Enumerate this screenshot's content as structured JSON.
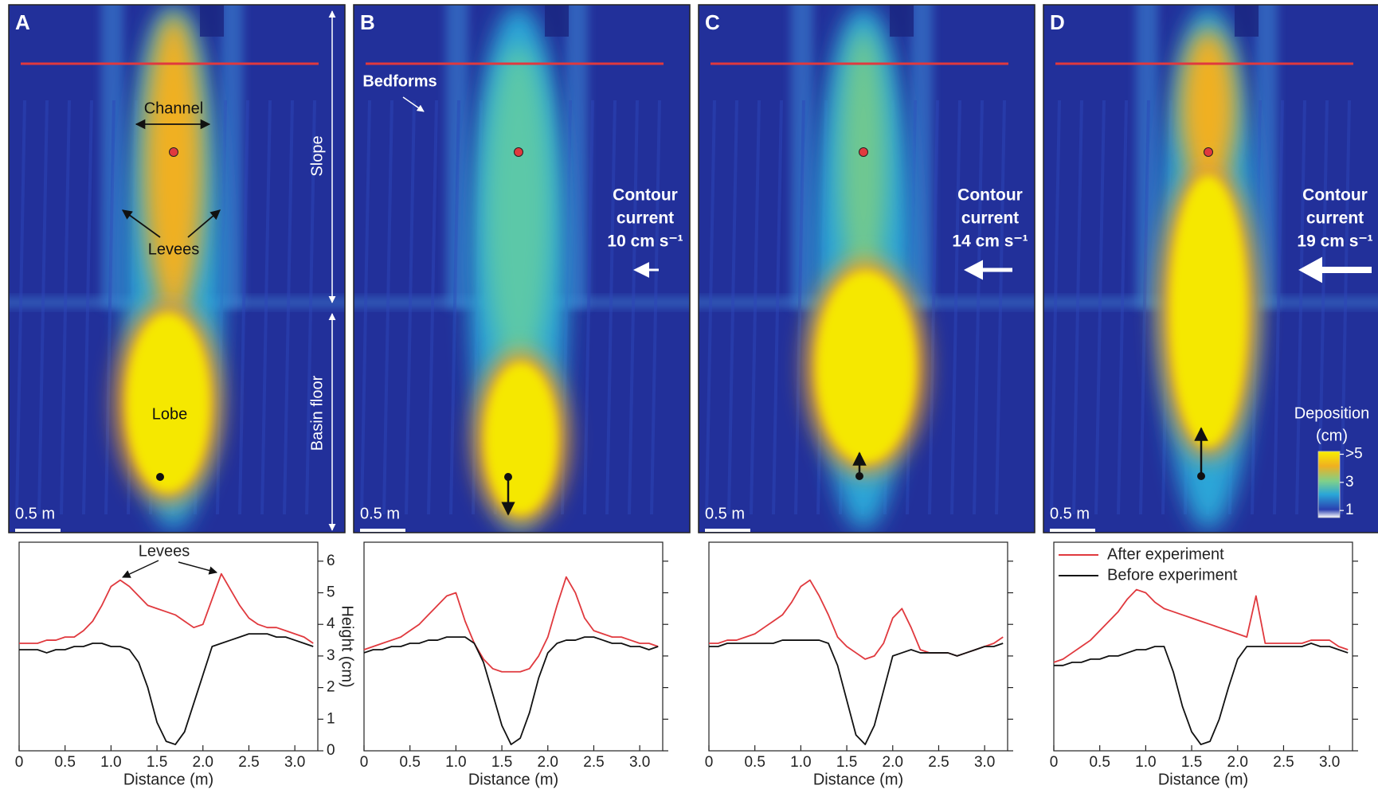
{
  "maps": [
    {
      "panel": "A",
      "channel": "Channel",
      "levees": "Levees",
      "lobe": "Lobe",
      "slope": "Slope",
      "basin_floor": "Basin floor",
      "scale": "0.5 m"
    },
    {
      "panel": "B",
      "bedforms": "Bedforms",
      "current": [
        "Contour",
        "current",
        "10 cm s⁻¹"
      ],
      "scale": "0.5 m"
    },
    {
      "panel": "C",
      "current": [
        "Contour",
        "current",
        "14 cm s⁻¹"
      ],
      "scale": "0.5 m"
    },
    {
      "panel": "D",
      "current": [
        "Contour",
        "current",
        "19 cm s⁻¹"
      ],
      "scale": "0.5 m",
      "colorbar": {
        "title": [
          "Deposition",
          "(cm)"
        ],
        "lim": [
          0.5,
          5.2
        ],
        "ticks": [
          {
            "value": 5,
            "label": ">5"
          },
          3,
          1
        ]
      }
    }
  ],
  "chart_data": [
    {
      "type": "line",
      "xlabel": "Distance (m)",
      "ylabel": "Height (cm)",
      "annotation": "Levees",
      "ytick_labels": true,
      "x": [
        0,
        0.1,
        0.2,
        0.3,
        0.4,
        0.5,
        0.6,
        0.7,
        0.8,
        0.9,
        1.0,
        1.1,
        1.2,
        1.3,
        1.4,
        1.5,
        1.6,
        1.7,
        1.8,
        1.9,
        2.0,
        2.1,
        2.2,
        2.3,
        2.4,
        2.5,
        2.6,
        2.7,
        2.8,
        2.9,
        3.0,
        3.1,
        3.2
      ],
      "series": [
        {
          "color": "#e0393e",
          "values": [
            3.4,
            3.4,
            3.4,
            3.5,
            3.5,
            3.6,
            3.6,
            3.8,
            4.1,
            4.6,
            5.2,
            5.4,
            5.2,
            4.9,
            4.6,
            4.5,
            4.4,
            4.3,
            4.1,
            3.9,
            4.0,
            4.8,
            5.6,
            5.1,
            4.6,
            4.2,
            4.0,
            3.9,
            3.9,
            3.8,
            3.7,
            3.6,
            3.4
          ]
        },
        {
          "color": "#111111",
          "values": [
            3.2,
            3.2,
            3.2,
            3.1,
            3.2,
            3.2,
            3.3,
            3.3,
            3.4,
            3.4,
            3.3,
            3.3,
            3.2,
            2.8,
            2.0,
            0.9,
            0.3,
            0.2,
            0.6,
            1.5,
            2.4,
            3.3,
            3.4,
            3.5,
            3.6,
            3.7,
            3.7,
            3.7,
            3.6,
            3.6,
            3.5,
            3.4,
            3.3
          ]
        }
      ],
      "xlim": [
        0,
        3.25
      ],
      "ylim": [
        0,
        6.6
      ],
      "xticks": [
        0,
        0.5,
        {
          "value": 1,
          "label": "1.0"
        },
        1.5,
        {
          "value": 2,
          "label": "2.0"
        },
        2.5,
        {
          "value": 3,
          "label": "3.0"
        }
      ],
      "yticks": [
        0,
        1,
        2,
        3,
        4,
        5,
        6
      ]
    },
    {
      "type": "line",
      "xlabel": "Distance (m)",
      "ytick_labels": false,
      "x": [
        0,
        0.1,
        0.2,
        0.3,
        0.4,
        0.5,
        0.6,
        0.7,
        0.8,
        0.9,
        1.0,
        1.1,
        1.2,
        1.3,
        1.4,
        1.5,
        1.6,
        1.7,
        1.8,
        1.9,
        2.0,
        2.1,
        2.2,
        2.3,
        2.4,
        2.5,
        2.6,
        2.7,
        2.8,
        2.9,
        3.0,
        3.1,
        3.2
      ],
      "series": [
        {
          "color": "#e0393e",
          "values": [
            3.2,
            3.3,
            3.4,
            3.5,
            3.6,
            3.8,
            4.0,
            4.3,
            4.6,
            4.9,
            5.0,
            4.1,
            3.4,
            2.9,
            2.6,
            2.5,
            2.5,
            2.5,
            2.6,
            3.0,
            3.6,
            4.6,
            5.5,
            5.0,
            4.2,
            3.8,
            3.7,
            3.6,
            3.6,
            3.5,
            3.4,
            3.4,
            3.3
          ]
        },
        {
          "color": "#111111",
          "values": [
            3.1,
            3.2,
            3.2,
            3.3,
            3.3,
            3.4,
            3.4,
            3.5,
            3.5,
            3.6,
            3.6,
            3.6,
            3.4,
            2.8,
            1.8,
            0.8,
            0.2,
            0.4,
            1.2,
            2.3,
            3.1,
            3.4,
            3.5,
            3.5,
            3.6,
            3.6,
            3.5,
            3.4,
            3.4,
            3.3,
            3.3,
            3.2,
            3.3
          ]
        }
      ],
      "xlim": [
        0,
        3.25
      ],
      "ylim": [
        0,
        6.6
      ],
      "xticks": [
        0,
        0.5,
        {
          "value": 1,
          "label": "1.0"
        },
        1.5,
        {
          "value": 2,
          "label": "2.0"
        },
        2.5,
        {
          "value": 3,
          "label": "3.0"
        }
      ],
      "yticks": [
        0,
        1,
        2,
        3,
        4,
        5,
        6
      ]
    },
    {
      "type": "line",
      "xlabel": "Distance (m)",
      "ytick_labels": false,
      "x": [
        0,
        0.1,
        0.2,
        0.3,
        0.4,
        0.5,
        0.6,
        0.7,
        0.8,
        0.9,
        1.0,
        1.1,
        1.2,
        1.3,
        1.4,
        1.5,
        1.6,
        1.7,
        1.8,
        1.9,
        2.0,
        2.1,
        2.2,
        2.3,
        2.4,
        2.5,
        2.6,
        2.7,
        2.8,
        2.9,
        3.0,
        3.1,
        3.2
      ],
      "series": [
        {
          "color": "#e0393e",
          "values": [
            3.4,
            3.4,
            3.5,
            3.5,
            3.6,
            3.7,
            3.9,
            4.1,
            4.3,
            4.7,
            5.2,
            5.4,
            4.9,
            4.3,
            3.6,
            3.3,
            3.1,
            2.9,
            3.0,
            3.4,
            4.2,
            4.5,
            3.9,
            3.2,
            3.1,
            3.1,
            3.1,
            3.0,
            3.1,
            3.2,
            3.3,
            3.4,
            3.6
          ]
        },
        {
          "color": "#111111",
          "values": [
            3.3,
            3.3,
            3.4,
            3.4,
            3.4,
            3.4,
            3.4,
            3.4,
            3.5,
            3.5,
            3.5,
            3.5,
            3.5,
            3.4,
            2.7,
            1.6,
            0.5,
            0.2,
            0.8,
            1.9,
            3.0,
            3.1,
            3.2,
            3.1,
            3.1,
            3.1,
            3.1,
            3.0,
            3.1,
            3.2,
            3.3,
            3.3,
            3.4
          ]
        }
      ],
      "xlim": [
        0,
        3.25
      ],
      "ylim": [
        0,
        6.6
      ],
      "xticks": [
        0,
        0.5,
        {
          "value": 1,
          "label": "1.0"
        },
        1.5,
        {
          "value": 2,
          "label": "2.0"
        },
        2.5,
        {
          "value": 3,
          "label": "3.0"
        }
      ],
      "yticks": [
        0,
        1,
        2,
        3,
        4,
        5,
        6
      ]
    },
    {
      "type": "line",
      "xlabel": "Distance (m)",
      "ytick_labels": false,
      "legend": "upper left",
      "x": [
        0,
        0.1,
        0.2,
        0.3,
        0.4,
        0.5,
        0.6,
        0.7,
        0.8,
        0.9,
        1.0,
        1.1,
        1.2,
        1.3,
        1.4,
        1.5,
        1.6,
        1.7,
        1.8,
        1.9,
        2.0,
        2.1,
        2.2,
        2.3,
        2.4,
        2.5,
        2.6,
        2.7,
        2.8,
        2.9,
        3.0,
        3.1,
        3.2
      ],
      "series": [
        {
          "name": "After experiment",
          "color": "#e0393e",
          "values": [
            2.8,
            2.9,
            3.1,
            3.3,
            3.5,
            3.8,
            4.1,
            4.4,
            4.8,
            5.1,
            5.0,
            4.7,
            4.5,
            4.4,
            4.3,
            4.2,
            4.1,
            4.0,
            3.9,
            3.8,
            3.7,
            3.6,
            4.9,
            3.4,
            3.4,
            3.4,
            3.4,
            3.4,
            3.5,
            3.5,
            3.5,
            3.3,
            3.2
          ]
        },
        {
          "name": "Before experiment",
          "color": "#111111",
          "values": [
            2.7,
            2.7,
            2.8,
            2.8,
            2.9,
            2.9,
            3.0,
            3.0,
            3.1,
            3.2,
            3.2,
            3.3,
            3.3,
            2.5,
            1.4,
            0.6,
            0.2,
            0.3,
            1.0,
            2.0,
            2.9,
            3.3,
            3.3,
            3.3,
            3.3,
            3.3,
            3.3,
            3.3,
            3.4,
            3.3,
            3.3,
            3.2,
            3.1
          ]
        }
      ],
      "xlim": [
        0,
        3.25
      ],
      "ylim": [
        0,
        6.6
      ],
      "xticks": [
        0,
        0.5,
        {
          "value": 1,
          "label": "1.0"
        },
        1.5,
        {
          "value": 2,
          "label": "2.0"
        },
        2.5,
        {
          "value": 3,
          "label": "3.0"
        }
      ],
      "yticks": [
        0,
        1,
        2,
        3,
        4,
        5,
        6
      ]
    }
  ]
}
